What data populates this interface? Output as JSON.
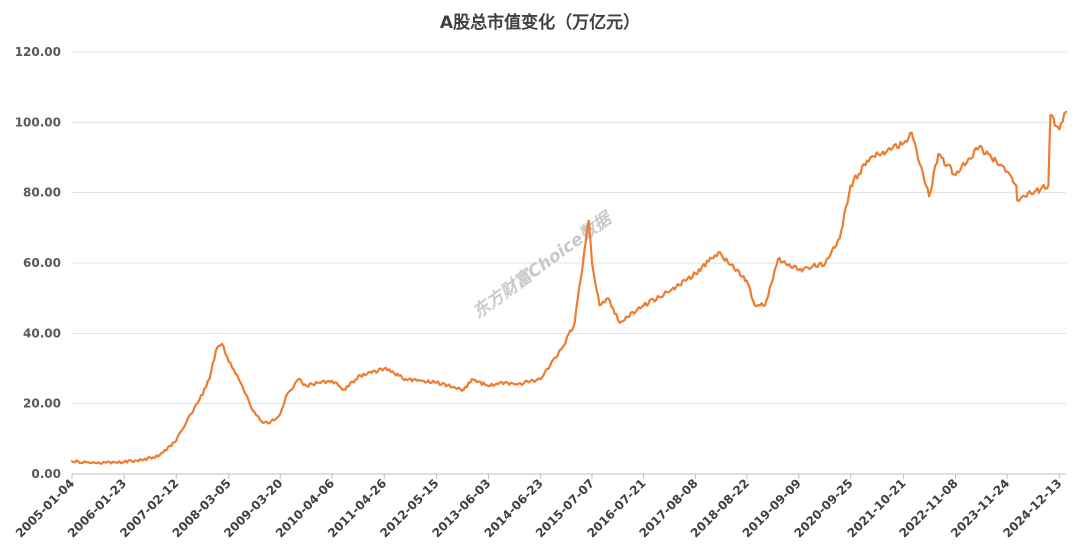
{
  "chart_data": {
    "type": "line",
    "title": "A股总市值变化（万亿元）",
    "xlabel": "",
    "ylabel": "",
    "ylim": [
      0,
      120
    ],
    "yticks": [
      "0.00",
      "20.00",
      "40.00",
      "60.00",
      "80.00",
      "100.00",
      "120.00"
    ],
    "xticks": [
      "2005-01-04",
      "2006-01-23",
      "2007-02-12",
      "2008-03-05",
      "2009-03-20",
      "2010-04-06",
      "2011-04-26",
      "2012-05-15",
      "2013-06-03",
      "2014-06-23",
      "2015-07-07",
      "2016-07-21",
      "2017-08-08",
      "2018-08-22",
      "2019-09-09",
      "2020-09-25",
      "2021-10-21",
      "2022-11-08",
      "2023-11-24",
      "2024-12-13"
    ],
    "grid": "horizontal",
    "legend": "none",
    "watermark": "东方财富Choice数据",
    "series": [
      {
        "color": "#ED7D31",
        "x": [
          "2005-01-04",
          "2005-06-01",
          "2006-01-23",
          "2006-06-01",
          "2006-10-01",
          "2007-02-12",
          "2007-05-01",
          "2007-08-01",
          "2007-10-15",
          "2007-12-01",
          "2008-01-15",
          "2008-03-05",
          "2008-06-01",
          "2008-09-01",
          "2008-11-01",
          "2009-01-01",
          "2009-03-20",
          "2009-05-01",
          "2009-08-01",
          "2009-10-01",
          "2010-01-01",
          "2010-04-06",
          "2010-07-01",
          "2010-11-01",
          "2011-04-26",
          "2011-10-01",
          "2012-05-15",
          "2012-12-01",
          "2013-02-01",
          "2013-06-03",
          "2013-10-01",
          "2014-01-01",
          "2014-06-23",
          "2014-12-01",
          "2015-03-01",
          "2015-06-12",
          "2015-07-07",
          "2015-08-31",
          "2015-11-01",
          "2016-01-28",
          "2016-07-21",
          "2017-02-01",
          "2017-08-08",
          "2018-01-24",
          "2018-08-22",
          "2018-10-19",
          "2019-01-03",
          "2019-04-08",
          "2019-09-09",
          "2020-03-23",
          "2020-07-06",
          "2020-09-25",
          "2021-02-18",
          "2021-10-21",
          "2021-12-20",
          "2022-04-27",
          "2022-07-05",
          "2022-11-08",
          "2023-05-01",
          "2023-11-24",
          "2024-01-31",
          "2024-02-05",
          "2024-09-23",
          "2024-10-08",
          "2024-12-13",
          "2025-01-31"
        ],
        "values": [
          3.6,
          3.2,
          3.4,
          4.0,
          5.0,
          9.5,
          15.0,
          21.0,
          27.0,
          35.0,
          37.0,
          32.0,
          26.0,
          18.0,
          15.0,
          14.5,
          17.0,
          22.0,
          27.0,
          25.0,
          26.0,
          26.5,
          24.0,
          28.0,
          30.0,
          27.0,
          26.0,
          24.0,
          27.0,
          25.0,
          26.0,
          25.5,
          27.0,
          36.0,
          43.0,
          72.0,
          60.0,
          48.0,
          50.0,
          43.0,
          48.0,
          52.0,
          57.0,
          63.0,
          55.0,
          48.0,
          48.0,
          61.0,
          58.0,
          60.0,
          67.0,
          82.0,
          90.0,
          94.0,
          97.0,
          79.0,
          91.0,
          85.0,
          93.0,
          86.0,
          82.0,
          78.0,
          82.0,
          102.0,
          98.0,
          103.0
        ]
      }
    ]
  }
}
